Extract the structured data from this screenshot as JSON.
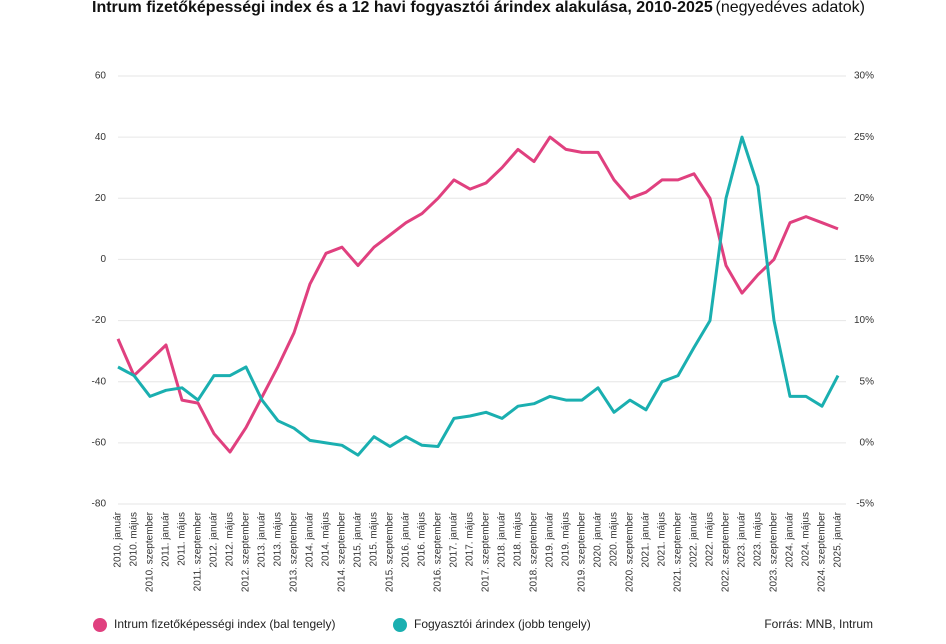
{
  "chart_data": {
    "type": "line",
    "title": "Intrum fizetőképességi index és a 12 havi fogyasztói árindex alakulása, 2010-2025",
    "subtitle": "(negyedéves adatok)",
    "source": "Forrás: MNB, Intrum",
    "categories": [
      "2010. január",
      "2010. május",
      "2010. szeptember",
      "2011. január",
      "2011. május",
      "2011. szeptember",
      "2012. január",
      "2012. május",
      "2012. szeptember",
      "2013. január",
      "2013. május",
      "2013. szeptember",
      "2014. január",
      "2014. május",
      "2014. szeptember",
      "2015. január",
      "2015. május",
      "2015. szeptember",
      "2016. január",
      "2016. május",
      "2016. szeptember",
      "2017. január",
      "2017. május",
      "2017. szeptember",
      "2018. január",
      "2018. május",
      "2018. szeptember",
      "2019. január",
      "2019. május",
      "2019. szeptember",
      "2020. január",
      "2020. május",
      "2020. szeptember",
      "2021. január",
      "2021. május",
      "2021. szeptember",
      "2022. január",
      "2022. május",
      "2022. szeptember",
      "2023. január",
      "2023. május",
      "2023. szeptember",
      "2024. január",
      "2024. május",
      "2024. szeptember",
      "2025. január"
    ],
    "series": [
      {
        "name": "Intrum fizetőképességi index (bal tengely)",
        "color": "#e0407f",
        "values": [
          -26,
          -38,
          -33,
          -28,
          -46,
          -47,
          -57,
          -63,
          -55,
          -45,
          -35,
          -24,
          -8,
          2,
          4,
          -2,
          4,
          8,
          12,
          15,
          20,
          26,
          23,
          25,
          30,
          36,
          32,
          40,
          36,
          35,
          35,
          26,
          20,
          22,
          26,
          26,
          28,
          20,
          -2,
          -11,
          -5,
          0,
          12,
          14,
          12,
          10
        ]
      },
      {
        "name": "Fogyasztói árindex (jobb tengely)",
        "color": "#1aafb0",
        "axis": "y2",
        "values": [
          6.2,
          5.5,
          3.8,
          4.3,
          4.5,
          3.5,
          5.5,
          5.5,
          6.2,
          3.5,
          1.8,
          1.2,
          0.2,
          0.0,
          -0.2,
          -1.0,
          0.5,
          -0.3,
          0.5,
          -0.2,
          -0.3,
          2.0,
          2.2,
          2.5,
          2.0,
          3.0,
          3.2,
          3.8,
          3.5,
          3.5,
          4.5,
          2.5,
          3.5,
          2.7,
          5.0,
          5.5,
          7.8,
          10.0,
          20.0,
          25.0,
          21.0,
          10.0,
          3.8,
          3.8,
          3.0,
          5.5
        ]
      }
    ],
    "ylim": [
      -80,
      60
    ],
    "yticks": [
      -80,
      -60,
      -40,
      -20,
      0,
      20,
      40,
      60
    ],
    "y2lim": [
      -5,
      30
    ],
    "y2ticks": [
      {
        "value": -5,
        "label": "-5%"
      },
      {
        "value": 0,
        "label": "0%"
      },
      {
        "value": 5,
        "label": "5%"
      },
      {
        "value": 10,
        "label": "10%"
      },
      {
        "value": 15,
        "label": "15%"
      },
      {
        "value": 20,
        "label": "20%"
      },
      {
        "value": 25,
        "label": "25%"
      },
      {
        "value": 30,
        "label": "30%"
      }
    ],
    "grid": true
  }
}
